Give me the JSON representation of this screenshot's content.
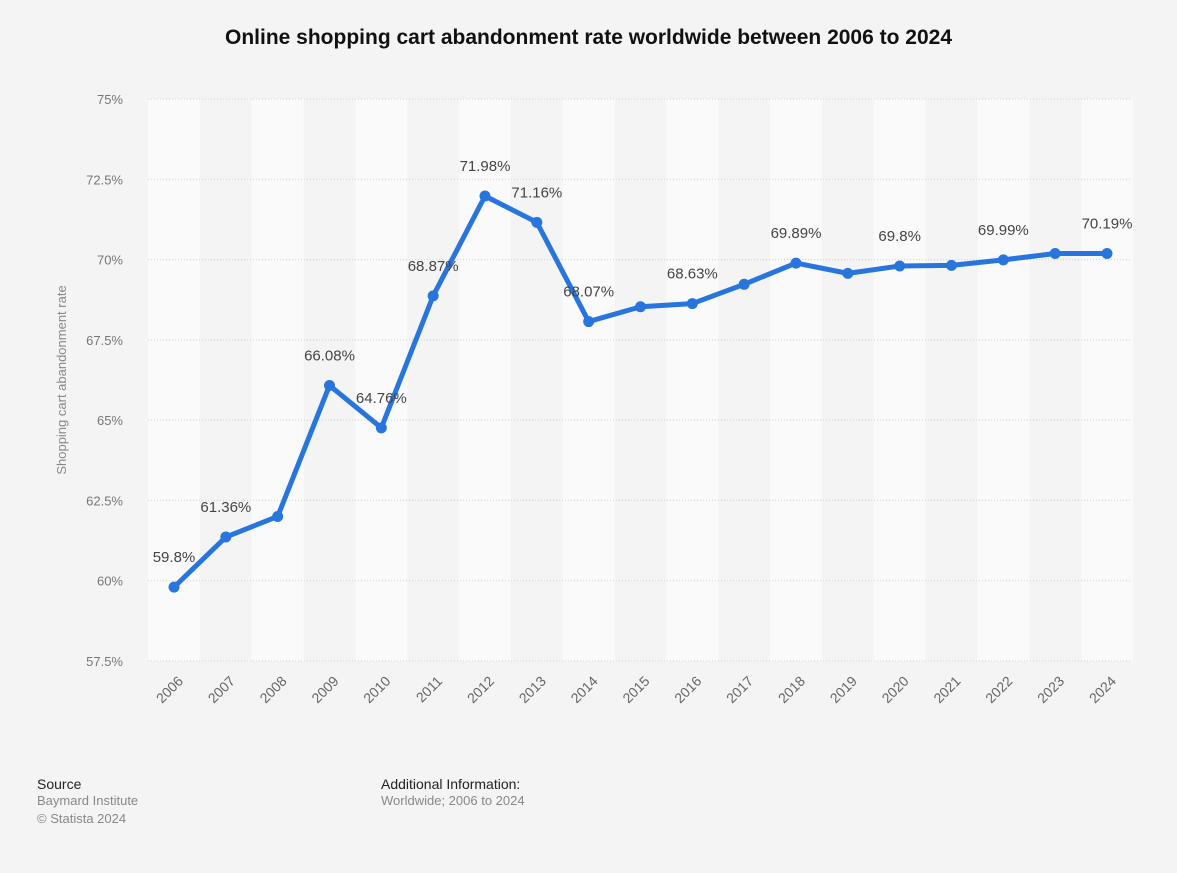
{
  "chart_data": {
    "type": "line",
    "title": "Online shopping cart abandonment rate worldwide between 2006 to 2024",
    "xlabel": "",
    "ylabel": "Shopping cart abandonment rate",
    "ylim": [
      57.5,
      75
    ],
    "yticks": [
      "57.5%",
      "60%",
      "62.5%",
      "65%",
      "67.5%",
      "70%",
      "72.5%",
      "75%"
    ],
    "ytick_values": [
      57.5,
      60,
      62.5,
      65,
      67.5,
      70,
      72.5,
      75
    ],
    "grid": true,
    "color": "#2876dd",
    "categories": [
      "2006",
      "2007",
      "2008",
      "2009",
      "2010",
      "2011",
      "2012",
      "2013",
      "2014",
      "2015",
      "2016",
      "2017",
      "2018",
      "2019",
      "2020",
      "2021",
      "2022",
      "2023",
      "2024"
    ],
    "values": [
      59.8,
      61.36,
      62.0,
      66.08,
      64.76,
      68.87,
      71.98,
      71.16,
      68.07,
      68.53,
      68.63,
      69.23,
      69.89,
      69.57,
      69.8,
      69.82,
      69.99,
      70.19,
      70.19
    ],
    "data_labels": [
      "59.8%",
      "61.36%",
      null,
      "66.08%",
      "64.76%",
      "68.87%",
      "71.98%",
      "71.16%",
      "68.07%",
      null,
      "68.63%",
      null,
      "69.89%",
      null,
      "69.8%",
      null,
      "69.99%",
      null,
      "70.19%"
    ]
  },
  "footer": {
    "source_heading": "Source",
    "source": "Baymard Institute",
    "copyright": "© Statista 2024",
    "info_heading": "Additional Information:",
    "info": "Worldwide; 2006 to 2024"
  }
}
